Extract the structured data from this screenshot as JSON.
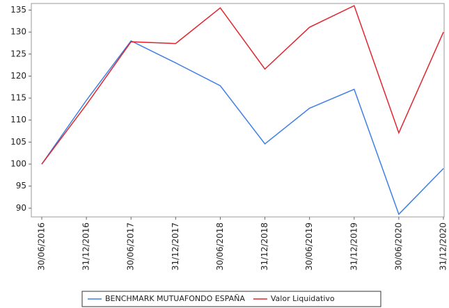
{
  "chart_data": {
    "type": "line",
    "categories": [
      "30/06/2016",
      "31/12/2016",
      "30/06/2017",
      "31/12/2017",
      "30/06/2018",
      "31/12/2018",
      "30/06/2019",
      "31/12/2019",
      "30/06/2020",
      "31/12/2020"
    ],
    "series": [
      {
        "name": "BENCHMARK MUTUAFONDO ESPAÑA",
        "color": "#3d7fe6",
        "values": [
          100,
          114.5,
          128,
          123,
          117.8,
          104.6,
          112.7,
          117,
          88.6,
          99
        ]
      },
      {
        "name": "Valor Liquidativo",
        "color": "#e0262f",
        "values": [
          100,
          113.5,
          127.8,
          127.4,
          135.5,
          121.6,
          131.1,
          136,
          107.1,
          130
        ]
      }
    ],
    "ylim": [
      88,
      136.5
    ],
    "yticks": [
      90,
      95,
      100,
      105,
      110,
      115,
      120,
      125,
      130,
      135
    ],
    "grid": false
  }
}
